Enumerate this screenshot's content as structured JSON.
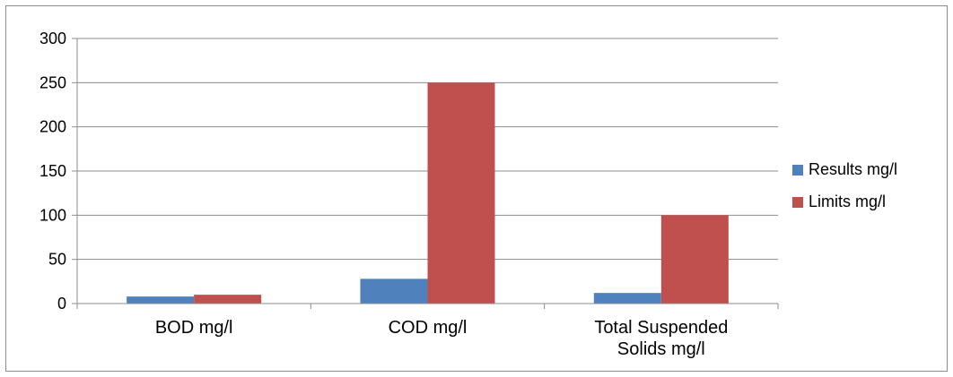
{
  "chart_data": {
    "type": "bar",
    "categories": [
      "BOD mg/l",
      "COD mg/l",
      "Total Suspended Solids mg/l"
    ],
    "category_lines": [
      [
        "BOD mg/l"
      ],
      [
        "COD mg/l"
      ],
      [
        "Total Suspended",
        "Solids mg/l"
      ]
    ],
    "series": [
      {
        "name": "Results mg/l",
        "values": [
          8,
          28,
          12
        ],
        "color": "#4f81bd"
      },
      {
        "name": "Limits mg/l",
        "values": [
          10,
          250,
          100
        ],
        "color": "#c0504d"
      }
    ],
    "title": "",
    "xlabel": "",
    "ylabel": "",
    "ylim": [
      0,
      300
    ],
    "yticks": [
      0,
      50,
      100,
      150,
      200,
      250,
      300
    ],
    "grid": true,
    "legend": "right"
  }
}
